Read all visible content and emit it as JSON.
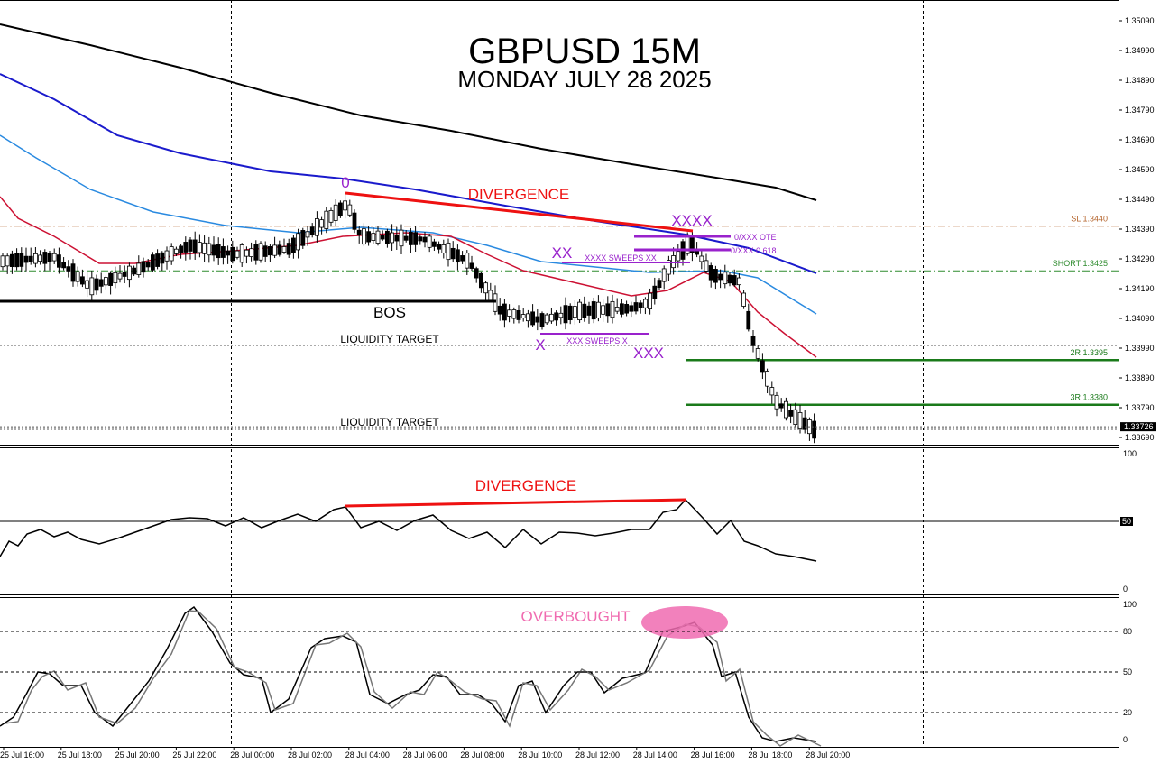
{
  "title": "GBPUSD 15M",
  "subtitle": "MONDAY JULY 28 2025",
  "chart_data": [
    {
      "type": "candlestick",
      "panel": "price",
      "y_ticks": [
        "1.35090",
        "1.34990",
        "1.34890",
        "1.34790",
        "1.34690",
        "1.34590",
        "1.34490",
        "1.34390",
        "1.34290",
        "1.34190",
        "1.34090",
        "1.33990",
        "1.33890",
        "1.33790",
        "1.33690"
      ],
      "ylim": [
        1.3365,
        1.3512
      ],
      "current_price": "1.33726",
      "levels": [
        {
          "name": "SL",
          "label": "SL 1.3440",
          "price": 1.344,
          "color": "#b5652d",
          "style": "dash-dot"
        },
        {
          "name": "SHORT",
          "label": "SHORT 1.3425",
          "price": 1.3425,
          "color": "#2e8b2e",
          "style": "dash-dot"
        },
        {
          "name": "2R",
          "label": "2R 1.3395",
          "price": 1.3395,
          "color": "#1a7a1a",
          "style": "solid"
        },
        {
          "name": "3R",
          "label": "3R 1.3380",
          "price": 1.338,
          "color": "#1a7a1a",
          "style": "solid"
        }
      ],
      "annotations": {
        "divergence": "DIVERGENCE",
        "bos": "BOS",
        "liquidity_target_1": "LIQUIDITY TARGET",
        "liquidity_target_2": "LIQUIDITY TARGET",
        "zero": "0",
        "x": "X",
        "xx": "XX",
        "xxx": "XXX",
        "xxxx": "XXXX",
        "xxx_sweeps_x": "XXX SWEEPS X",
        "xxxx_sweeps_xx": "XXXX SWEEPS XX",
        "ote": "0/XXX OTE",
        "fib": "0/XXX 0.618"
      }
    },
    {
      "type": "line",
      "panel": "rsi",
      "y_ticks": [
        "100",
        "50",
        "0"
      ],
      "ylim": [
        0,
        100
      ],
      "annotation": "DIVERGENCE"
    },
    {
      "type": "line",
      "panel": "stochastic",
      "y_ticks": [
        "100",
        "80",
        "50",
        "20",
        "0"
      ],
      "ylim": [
        0,
        100
      ],
      "annotation": "OVERBOUGHT"
    }
  ],
  "x_ticks": [
    "25 Jul 16:00",
    "25 Jul 18:00",
    "25 Jul 20:00",
    "25 Jul 22:00",
    "28 Jul 00:00",
    "28 Jul 02:00",
    "28 Jul 04:00",
    "28 Jul 06:00",
    "28 Jul 08:00",
    "28 Jul 10:00",
    "28 Jul 12:00",
    "28 Jul 14:00",
    "28 Jul 16:00",
    "28 Jul 18:00",
    "28 Jul 20:00"
  ],
  "colors": {
    "ma_black": "#000000",
    "ma_blue": "#1a1acc",
    "ma_lightblue": "#2a8ae0",
    "ma_red": "#cc1133",
    "divergence": "#ee1111",
    "pattern": "#9922cc",
    "overbought": "#f06bb0"
  }
}
